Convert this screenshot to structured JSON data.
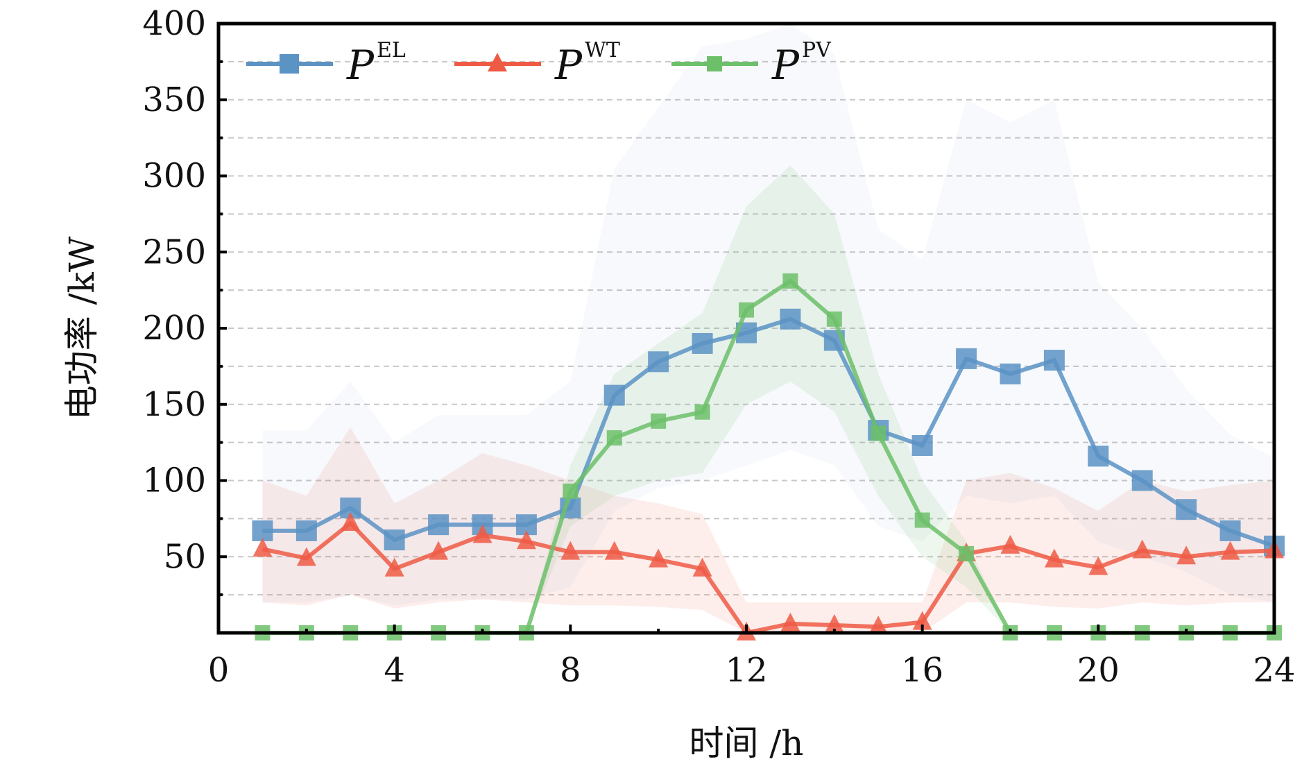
{
  "chart_data": {
    "type": "line",
    "title": "",
    "xlabel": "时间 /h",
    "ylabel": "电功率 /kW",
    "xlim": [
      0,
      24
    ],
    "ylim": [
      0,
      400
    ],
    "xticks": [
      "0",
      "4",
      "8",
      "12",
      "16",
      "20",
      "24"
    ],
    "yticks": [
      "50",
      "100",
      "150",
      "200",
      "250",
      "300",
      "350",
      "400"
    ],
    "grid": "horizontal dashed, every 25",
    "legend_position": "top-left",
    "x": [
      1,
      2,
      3,
      4,
      5,
      6,
      7,
      8,
      9,
      10,
      11,
      12,
      13,
      14,
      15,
      16,
      17,
      18,
      19,
      20,
      21,
      22,
      23,
      24
    ],
    "series": [
      {
        "name": "P",
        "sup": "EL",
        "color": "#5b93c4",
        "marker": "square",
        "values": [
          67,
          67,
          82,
          61,
          71,
          71,
          71,
          82,
          156,
          178,
          190,
          197,
          206,
          192,
          133,
          123,
          180,
          170,
          179,
          116,
          100,
          81,
          67,
          57
        ],
        "band_upper": [
          133,
          133,
          165,
          125,
          143,
          143,
          143,
          165,
          305,
          345,
          385,
          390,
          400,
          380,
          265,
          245,
          350,
          335,
          350,
          230,
          200,
          160,
          130,
          115
        ],
        "band_lower": [
          20,
          20,
          25,
          18,
          22,
          22,
          22,
          30,
          80,
          95,
          100,
          110,
          120,
          110,
          70,
          60,
          90,
          85,
          90,
          60,
          50,
          40,
          25,
          20
        ]
      },
      {
        "name": "P",
        "sup": "WT",
        "color": "#ef5a45",
        "marker": "triangle",
        "values": [
          55,
          49,
          72,
          42,
          53,
          64,
          60,
          53,
          53,
          48,
          42,
          0,
          6,
          5,
          4,
          7,
          52,
          57,
          48,
          43,
          54,
          50,
          53,
          54
        ],
        "band_upper": [
          100,
          90,
          135,
          85,
          100,
          118,
          110,
          100,
          90,
          85,
          78,
          20,
          20,
          20,
          20,
          20,
          100,
          105,
          95,
          80,
          100,
          93,
          97,
          100
        ],
        "band_lower": [
          20,
          18,
          25,
          16,
          20,
          22,
          20,
          18,
          18,
          17,
          15,
          0,
          0,
          0,
          0,
          0,
          20,
          20,
          17,
          16,
          20,
          18,
          20,
          20
        ]
      },
      {
        "name": "P",
        "sup": "PV",
        "color": "#6cc06a",
        "marker": "square",
        "values": [
          0,
          0,
          0,
          0,
          0,
          0,
          0,
          93,
          128,
          139,
          145,
          212,
          231,
          206,
          131,
          74,
          52,
          0,
          0,
          0,
          0,
          0,
          0,
          0
        ],
        "band_upper": [
          0,
          0,
          0,
          0,
          0,
          0,
          0,
          110,
          170,
          190,
          210,
          280,
          307,
          275,
          170,
          100,
          60,
          0,
          0,
          0,
          0,
          0,
          0,
          0
        ],
        "band_lower": [
          0,
          0,
          0,
          0,
          0,
          0,
          0,
          70,
          90,
          100,
          105,
          150,
          165,
          145,
          90,
          50,
          30,
          0,
          0,
          0,
          0,
          0,
          0,
          0
        ]
      }
    ]
  }
}
